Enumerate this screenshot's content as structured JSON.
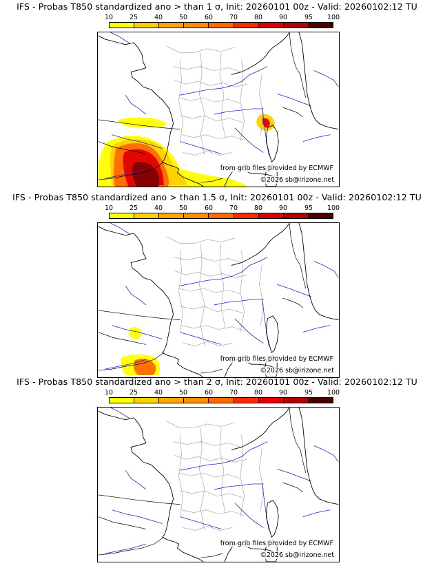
{
  "panels": [
    {
      "title": "IFS - Probas T850  standardized ano > than 1 σ, Init: 20260101 00z - Valid: 20260102:12 TU",
      "threshold_sigma": 1,
      "source_text": "from grib files provided by ECMWF",
      "copyright": "©2026 sb@irizone.net"
    },
    {
      "title": "IFS - Probas T850  standardized ano > than 1.5 σ, Init: 20260101 00z - Valid: 20260102:12 TU",
      "threshold_sigma": 1.5,
      "source_text": "from grib files provided by ECMWF",
      "copyright": "©2026 sb@irizone.net"
    },
    {
      "title": "IFS - Probas T850  standardized ano > than 2 σ, Init: 20260101 00z - Valid: 20260102:12 TU",
      "threshold_sigma": 2,
      "source_text": "from grib files provided by ECMWF",
      "copyright": "©2026 sb@irizone.net"
    }
  ],
  "legend": {
    "labels": [
      "10",
      "25",
      "40",
      "50",
      "60",
      "70",
      "80",
      "90",
      "95",
      "100"
    ],
    "colors": [
      "#ffff00",
      "#ffd000",
      "#ffa500",
      "#ff8c00",
      "#ff6a00",
      "#ff2a00",
      "#e00000",
      "#b00000",
      "#800000",
      "#4a0000"
    ]
  },
  "map_colors": {
    "coastline": "#000000",
    "rivers": "#2222cc",
    "admin_borders": "#999999"
  }
}
